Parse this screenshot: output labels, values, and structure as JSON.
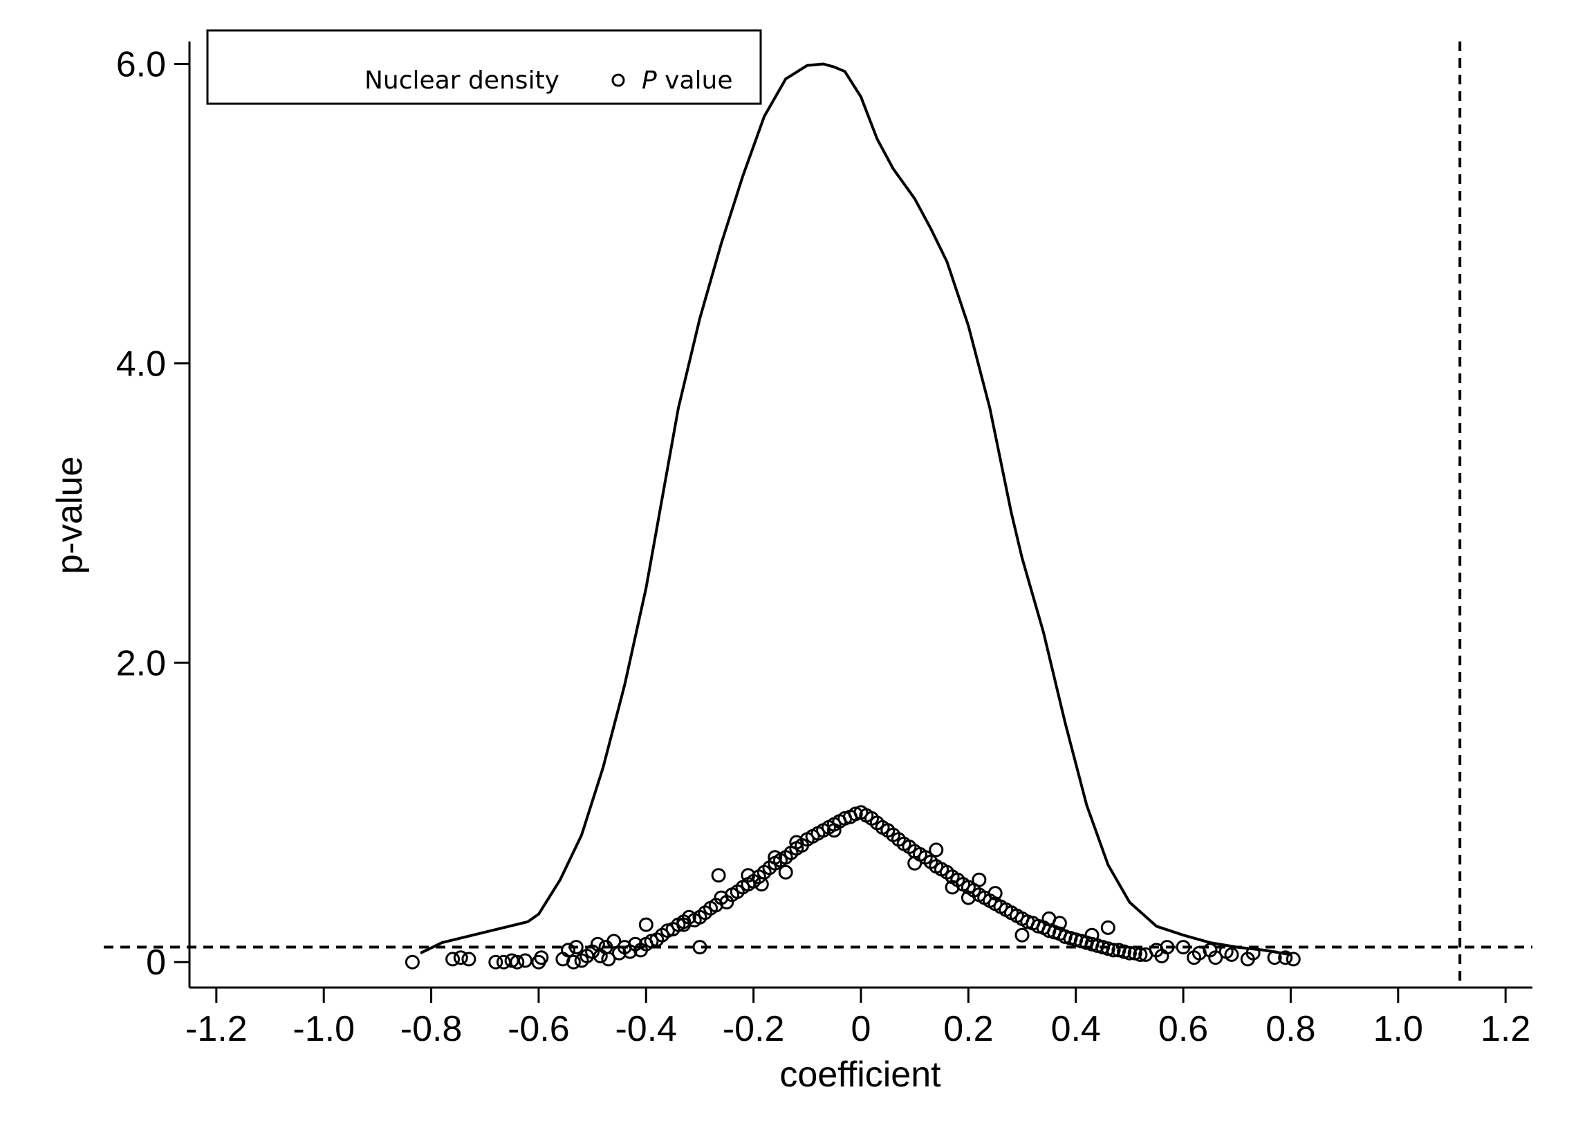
{
  "chart_data": {
    "type": "scatter",
    "xlabel": "coefficient",
    "ylabel": "p-value",
    "xlim": [
      -1.25,
      1.25
    ],
    "ylim": [
      -0.17,
      6.15
    ],
    "x_ticks": [
      {
        "value": -1.2,
        "label": "-1.2"
      },
      {
        "value": -1.0,
        "label": "-1.0"
      },
      {
        "value": -0.8,
        "label": "-0.8"
      },
      {
        "value": -0.6,
        "label": "-0.6"
      },
      {
        "value": -0.4,
        "label": "-0.4"
      },
      {
        "value": -0.2,
        "label": "-0.2"
      },
      {
        "value": 0,
        "label": "0"
      },
      {
        "value": 0.2,
        "label": "0.2"
      },
      {
        "value": 0.4,
        "label": "0.4"
      },
      {
        "value": 0.6,
        "label": "0.6"
      },
      {
        "value": 0.8,
        "label": "0.8"
      },
      {
        "value": 1.0,
        "label": "1.0"
      },
      {
        "value": 1.2,
        "label": "1.2"
      }
    ],
    "y_ticks": [
      {
        "value": 0,
        "label": "0"
      },
      {
        "value": 2,
        "label": "2.0"
      },
      {
        "value": 4,
        "label": "4.0"
      },
      {
        "value": 6,
        "label": "6.0"
      }
    ],
    "grid": false,
    "legend": {
      "placement": "top-left",
      "entries": [
        {
          "label": "Nuclear density",
          "marker": "line"
        },
        {
          "label_italic": "P",
          "label": " value",
          "marker": "hollow-circle"
        }
      ]
    },
    "reference_lines": [
      {
        "orientation": "horizontal",
        "value": 0.1,
        "style": "dashed"
      },
      {
        "orientation": "vertical",
        "value": 1.115,
        "style": "dashed"
      }
    ],
    "series": [
      {
        "name": "Nuclear density",
        "kind": "line",
        "x": [
          -0.82,
          -0.78,
          -0.7,
          -0.62,
          -0.6,
          -0.56,
          -0.52,
          -0.48,
          -0.44,
          -0.4,
          -0.37,
          -0.34,
          -0.3,
          -0.26,
          -0.22,
          -0.18,
          -0.14,
          -0.1,
          -0.07,
          -0.05,
          -0.03,
          0.0,
          0.03,
          0.06,
          0.1,
          0.13,
          0.16,
          0.2,
          0.24,
          0.28,
          0.3,
          0.34,
          0.38,
          0.42,
          0.46,
          0.5,
          0.55,
          0.6,
          0.65,
          0.7,
          0.75,
          0.8
        ],
        "y": [
          0.06,
          0.13,
          0.2,
          0.27,
          0.32,
          0.55,
          0.85,
          1.3,
          1.85,
          2.5,
          3.1,
          3.7,
          4.3,
          4.8,
          5.25,
          5.65,
          5.9,
          5.99,
          6.0,
          5.98,
          5.95,
          5.78,
          5.5,
          5.3,
          5.1,
          4.9,
          4.68,
          4.25,
          3.7,
          3.0,
          2.7,
          2.2,
          1.6,
          1.05,
          0.65,
          0.4,
          0.24,
          0.18,
          0.13,
          0.1,
          0.08,
          0.05
        ]
      },
      {
        "name": "P value",
        "kind": "scatter",
        "marker": "hollow-circle",
        "x": [
          -0.835,
          -0.76,
          -0.745,
          -0.73,
          -0.68,
          -0.665,
          -0.65,
          -0.64,
          -0.625,
          -0.6,
          -0.595,
          -0.555,
          -0.545,
          -0.535,
          -0.53,
          -0.52,
          -0.51,
          -0.5,
          -0.49,
          -0.485,
          -0.475,
          -0.47,
          -0.46,
          -0.45,
          -0.44,
          -0.43,
          -0.42,
          -0.41,
          -0.4,
          -0.39,
          -0.38,
          -0.37,
          -0.36,
          -0.35,
          -0.34,
          -0.33,
          -0.32,
          -0.31,
          -0.3,
          -0.29,
          -0.28,
          -0.27,
          -0.26,
          -0.25,
          -0.24,
          -0.23,
          -0.22,
          -0.21,
          -0.2,
          -0.19,
          -0.18,
          -0.17,
          -0.16,
          -0.15,
          -0.14,
          -0.13,
          -0.12,
          -0.11,
          -0.1,
          -0.09,
          -0.08,
          -0.07,
          -0.06,
          -0.05,
          -0.04,
          -0.03,
          -0.02,
          -0.01,
          0.0,
          0.01,
          0.02,
          0.03,
          0.04,
          0.05,
          0.06,
          0.07,
          0.08,
          0.09,
          0.1,
          0.11,
          0.12,
          0.13,
          0.14,
          0.15,
          0.16,
          0.17,
          0.18,
          0.19,
          0.2,
          0.21,
          0.22,
          0.23,
          0.24,
          0.25,
          0.26,
          0.27,
          0.28,
          0.29,
          0.3,
          0.31,
          0.32,
          0.33,
          0.34,
          0.35,
          0.36,
          0.37,
          0.38,
          0.39,
          0.4,
          0.41,
          0.42,
          0.43,
          0.44,
          0.45,
          0.46,
          0.47,
          0.48,
          0.49,
          0.5,
          0.51,
          0.52,
          0.53,
          0.55,
          0.56,
          0.57,
          0.6,
          0.62,
          0.63,
          0.65,
          0.66,
          0.68,
          0.69,
          0.72,
          0.73,
          0.77,
          0.79,
          0.805,
          -0.265,
          -0.21,
          -0.16,
          -0.12,
          -0.05,
          0.05,
          0.1,
          0.17,
          0.2,
          0.28,
          0.35,
          0.43,
          -0.3,
          -0.185,
          -0.14,
          0.14,
          0.22,
          0.3,
          0.25,
          -0.4,
          -0.33,
          0.37,
          0.46
        ],
        "y": [
          0.0,
          0.02,
          0.03,
          0.02,
          0.0,
          0.0,
          0.01,
          0.0,
          0.01,
          0.0,
          0.03,
          0.02,
          0.08,
          0.0,
          0.1,
          0.01,
          0.04,
          0.07,
          0.12,
          0.04,
          0.1,
          0.02,
          0.14,
          0.06,
          0.1,
          0.07,
          0.12,
          0.08,
          0.12,
          0.14,
          0.15,
          0.18,
          0.21,
          0.22,
          0.25,
          0.27,
          0.3,
          0.28,
          0.3,
          0.33,
          0.36,
          0.38,
          0.43,
          0.4,
          0.45,
          0.47,
          0.5,
          0.52,
          0.54,
          0.57,
          0.6,
          0.63,
          0.66,
          0.68,
          0.7,
          0.73,
          0.76,
          0.78,
          0.82,
          0.84,
          0.86,
          0.88,
          0.9,
          0.92,
          0.94,
          0.96,
          0.97,
          0.99,
          1.0,
          0.98,
          0.96,
          0.93,
          0.9,
          0.88,
          0.85,
          0.82,
          0.79,
          0.77,
          0.74,
          0.72,
          0.7,
          0.67,
          0.64,
          0.62,
          0.6,
          0.57,
          0.55,
          0.52,
          0.5,
          0.48,
          0.45,
          0.43,
          0.41,
          0.39,
          0.37,
          0.35,
          0.33,
          0.31,
          0.29,
          0.27,
          0.26,
          0.24,
          0.23,
          0.21,
          0.2,
          0.19,
          0.17,
          0.16,
          0.15,
          0.14,
          0.13,
          0.12,
          0.11,
          0.1,
          0.09,
          0.08,
          0.08,
          0.07,
          0.06,
          0.06,
          0.05,
          0.05,
          0.08,
          0.04,
          0.1,
          0.1,
          0.03,
          0.06,
          0.08,
          0.03,
          0.07,
          0.05,
          0.02,
          0.06,
          0.03,
          0.03,
          0.02,
          0.58,
          0.58,
          0.7,
          0.8,
          0.88,
          0.88,
          0.66,
          0.5,
          0.43,
          0.33,
          0.29,
          0.18,
          0.1,
          0.52,
          0.6,
          0.75,
          0.55,
          0.18,
          0.46,
          0.25,
          0.25,
          0.26,
          0.23
        ]
      }
    ]
  }
}
